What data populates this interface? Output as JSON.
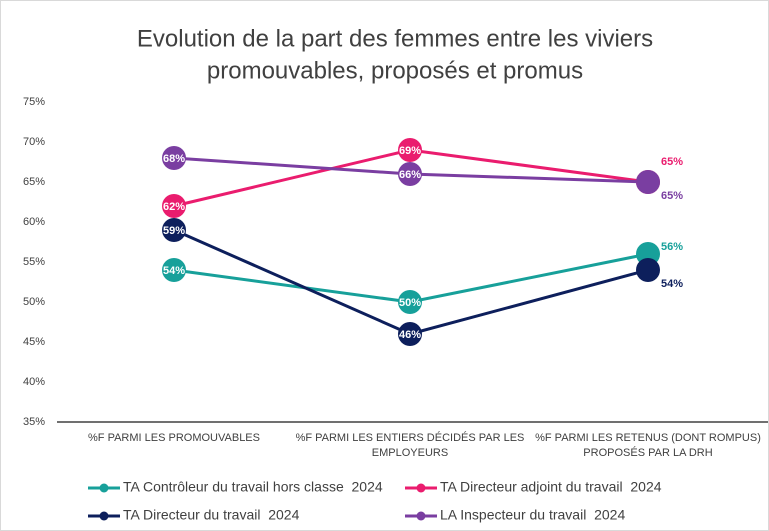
{
  "chart_data": {
    "type": "line",
    "title": [
      "Evolution de la part des femmes entre les viviers",
      "promouvables, proposés et promus"
    ],
    "categories": [
      "%F PARMI LES PROMOUVABLES",
      "%F PARMI LES ENTIERS DÉCIDÉS PAR LES EMPLOYEURS",
      "%F PARMI LES RETENUS (DONT ROMPUS) PROPOSÉS PAR LA DRH"
    ],
    "series": [
      {
        "name": "TA Contrôleur du travail hors classe  2024",
        "color": "#17a09a",
        "values": [
          54,
          50,
          56
        ],
        "value_labels": [
          "54%",
          "50%",
          "56%"
        ]
      },
      {
        "name": "TA Directeur adjoint du travail  2024",
        "color": "#ea1c6e",
        "values": [
          62,
          69,
          65
        ],
        "value_labels": [
          "62%",
          "69%",
          "65%"
        ]
      },
      {
        "name": "TA Directeur du travail  2024",
        "color": "#0d1f5c",
        "values": [
          59,
          46,
          54
        ],
        "value_labels": [
          "59%",
          "46%",
          "54%"
        ]
      },
      {
        "name": "LA Inspecteur du travail  2024",
        "color": "#7a3ea1",
        "values": [
          68,
          66,
          65
        ],
        "value_labels": [
          "68%",
          "66%",
          "65%"
        ]
      }
    ],
    "ylim": [
      35,
      75
    ],
    "yticks": [
      {
        "value": 35,
        "label": "35%"
      },
      {
        "value": 40,
        "label": "40%"
      },
      {
        "value": 45,
        "label": "45%"
      },
      {
        "value": 50,
        "label": "50%"
      },
      {
        "value": 55,
        "label": "55%"
      },
      {
        "value": 60,
        "label": "60%"
      },
      {
        "value": 65,
        "label": "65%"
      },
      {
        "value": 70,
        "label": "70%"
      },
      {
        "value": 75,
        "label": "75%"
      }
    ],
    "grid": false,
    "legend": "bottom"
  }
}
